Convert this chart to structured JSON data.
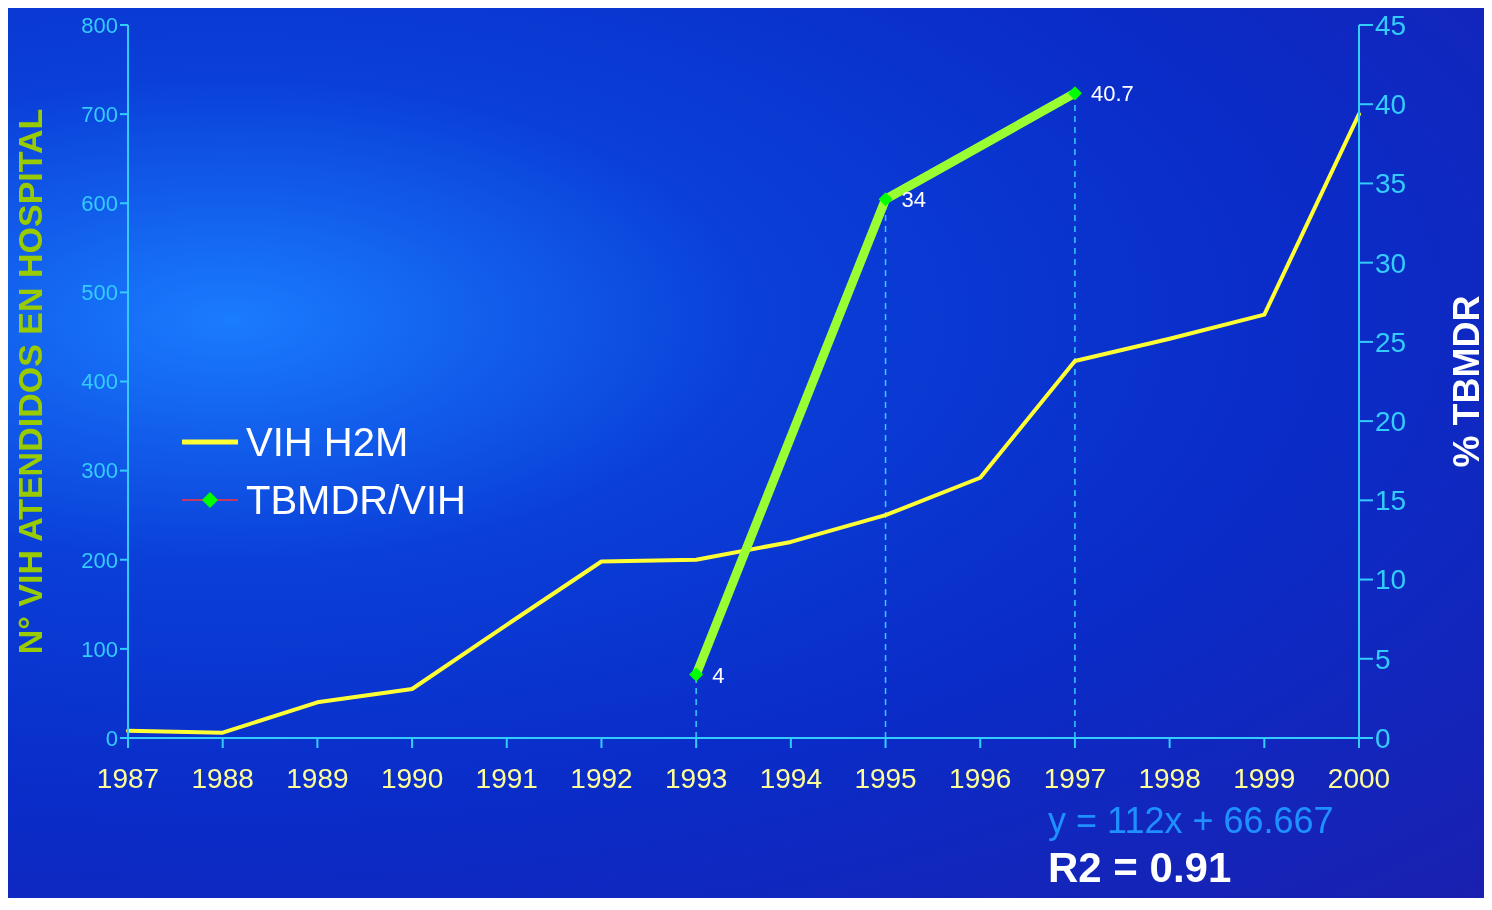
{
  "chart_data": {
    "type": "line",
    "categories": [
      "1987",
      "1988",
      "1989",
      "1990",
      "1991",
      "1992",
      "1993",
      "1994",
      "1995",
      "1996",
      "1997",
      "1998",
      "1999",
      "2000"
    ],
    "series": [
      {
        "name": "VIH H2M",
        "color": "#ffff33",
        "values": [
          8,
          6,
          40,
          55,
          127,
          198,
          200,
          220,
          250,
          292,
          423,
          448,
          475,
          700
        ]
      },
      {
        "name": "TBMDR/VIH",
        "color": "#99ff33",
        "axis": "y2",
        "marker": "diamond",
        "values": [
          null,
          null,
          null,
          null,
          null,
          null,
          4,
          null,
          34,
          null,
          40.7,
          null,
          null,
          null
        ],
        "value_labels": [
          null,
          null,
          null,
          null,
          null,
          null,
          "4",
          null,
          "34",
          null,
          "40.7",
          null,
          null,
          null
        ]
      }
    ],
    "ylabel": "N° VIH ATENDIDOS EN HOSPITAL",
    "y2label": "% TBMDR",
    "ylim": [
      0,
      800
    ],
    "yticks": [
      0,
      100,
      200,
      300,
      400,
      500,
      600,
      700,
      800
    ],
    "y2lim": [
      0,
      45
    ],
    "y2ticks": [
      0,
      5,
      10,
      15,
      20,
      25,
      30,
      35,
      40,
      45
    ],
    "ref_lines": [
      {
        "axis": "x",
        "value": "1993",
        "line_style": "dashed",
        "color": "#33ccff"
      },
      {
        "axis": "x",
        "value": "1995",
        "line_style": "dashed",
        "color": "#33ccff"
      },
      {
        "axis": "x",
        "value": "1997",
        "line_style": "dashed",
        "color": "#33ccff"
      }
    ],
    "annotations": [
      "y = 112x + 66.667",
      "R2 = 0.91"
    ],
    "legend": "left"
  }
}
